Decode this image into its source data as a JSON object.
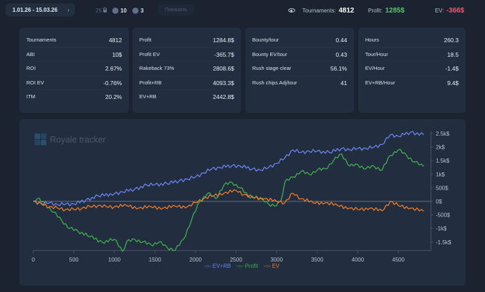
{
  "topbar": {
    "date_range": "1.01.26 - 15.03.26",
    "date_chevron": "›",
    "filter_locked_value": "25",
    "filter_a_value": "10",
    "filter_b_value": "3",
    "show_button": "Показать",
    "summary": {
      "tournaments_label": "Tournaments:",
      "tournaments_value": "4812",
      "profit_label": "Profit:",
      "profit_value": "1285$",
      "ev_label": "EV:",
      "ev_value": "-366$"
    }
  },
  "cards": [
    {
      "rows": [
        {
          "label": "Tournaments",
          "value": "4812"
        },
        {
          "label": "ABI",
          "value": "10$"
        },
        {
          "label": "ROI",
          "value": "2.67%"
        },
        {
          "label": "ROI EV",
          "value": "-0.76%"
        },
        {
          "label": "ITM",
          "value": "20.2%"
        }
      ]
    },
    {
      "rows": [
        {
          "label": "Profit",
          "value": "1284.8$"
        },
        {
          "label": "Profit EV",
          "value": "-365.7$"
        },
        {
          "label": "Rakeback 73%",
          "value": "2808.6$"
        },
        {
          "label": "Profit+RB",
          "value": "4093.3$"
        },
        {
          "label": "EV+RB",
          "value": "2442.8$"
        }
      ]
    },
    {
      "rows": [
        {
          "label": "Bounty/tour",
          "value": "0.44"
        },
        {
          "label": "Bounty EV/tour",
          "value": "0.43"
        },
        {
          "label": "Rush stage clear",
          "value": "56.1%"
        },
        {
          "label": "Rush chips Adj/tour",
          "value": "41"
        }
      ]
    },
    {
      "rows": [
        {
          "label": "Hours",
          "value": "260.3"
        },
        {
          "label": "Tour/Hour",
          "value": "18.5"
        },
        {
          "label": "EV/Hour",
          "value": "-1.4$"
        },
        {
          "label": "EV+RB/Hour",
          "value": "9.4$"
        }
      ]
    }
  ],
  "watermark": "Royale tracker",
  "chart_data": {
    "type": "line",
    "title": "",
    "xlabel": "",
    "ylabel": "",
    "xlim": [
      0,
      4812
    ],
    "ylim": [
      -1800,
      2700
    ],
    "x_ticks": [
      0,
      500,
      1000,
      1500,
      2000,
      2500,
      3000,
      3500,
      4000,
      4500
    ],
    "x_tick_labels": [
      "0",
      "500",
      "1000",
      "1500",
      "2000",
      "2500",
      "3000",
      "3500",
      "4000",
      "4500"
    ],
    "y_ticks": [
      2500,
      2000,
      1500,
      1000,
      500,
      0,
      -500,
      -1000,
      -1500
    ],
    "y_tick_labels": [
      "2.5k$",
      "2k$",
      "1.5k$",
      "1k$",
      "500$",
      "0$",
      "-500$",
      "-1k$",
      "-1.5k$"
    ],
    "legend_position": "bottom",
    "series": [
      {
        "name": "EV+RB",
        "color": "#6a85f0",
        "x": [
          0,
          100,
          200,
          300,
          400,
          500,
          650,
          800,
          1000,
          1100,
          1250,
          1400,
          1500,
          1650,
          1800,
          1900,
          2000,
          2100,
          2200,
          2300,
          2450,
          2550,
          2700,
          2800,
          2900,
          3000,
          3100,
          3200,
          3300,
          3400,
          3500,
          3650,
          3800,
          3900,
          4000,
          4100,
          4200,
          4300,
          4400,
          4500,
          4650,
          4812
        ],
        "values": [
          0,
          -80,
          -50,
          -120,
          -100,
          -100,
          50,
          200,
          280,
          350,
          450,
          600,
          620,
          650,
          760,
          820,
          900,
          1050,
          1200,
          1250,
          1320,
          1300,
          1200,
          1150,
          1250,
          1400,
          1600,
          1900,
          1800,
          1850,
          1850,
          1800,
          1950,
          1900,
          1950,
          1950,
          2000,
          2100,
          2450,
          2400,
          2550,
          2450
        ]
      },
      {
        "name": "Profit",
        "color": "#3fb14d",
        "x": [
          0,
          50,
          150,
          250,
          350,
          450,
          550,
          700,
          850,
          1000,
          1100,
          1150,
          1250,
          1350,
          1450,
          1550,
          1650,
          1750,
          1850,
          1950,
          2050,
          2150,
          2250,
          2350,
          2450,
          2550,
          2650,
          2800,
          2900,
          3000,
          3050,
          3100,
          3200,
          3300,
          3400,
          3500,
          3600,
          3700,
          3800,
          3900,
          4000,
          4100,
          4200,
          4300,
          4400,
          4500,
          4600,
          4700,
          4812
        ],
        "values": [
          0,
          100,
          -100,
          -400,
          -700,
          -1000,
          -1100,
          -1300,
          -1500,
          -1400,
          -1850,
          -1500,
          -1400,
          -1500,
          -1600,
          -1500,
          -1700,
          -1800,
          -1400,
          -700,
          0,
          300,
          100,
          600,
          700,
          500,
          200,
          100,
          -100,
          -150,
          0,
          700,
          900,
          1100,
          1000,
          1150,
          1200,
          1500,
          1750,
          1300,
          1350,
          1200,
          1300,
          1150,
          1700,
          1900,
          1700,
          1450,
          1285
        ]
      },
      {
        "name": "EV",
        "color": "#f07c26",
        "x": [
          0,
          100,
          200,
          300,
          400,
          500,
          600,
          700,
          800,
          900,
          1000,
          1150,
          1300,
          1450,
          1600,
          1750,
          1900,
          2000,
          2100,
          2200,
          2350,
          2500,
          2600,
          2700,
          2850,
          3000,
          3100,
          3200,
          3300,
          3450,
          3600,
          3750,
          3900,
          4000,
          4150,
          4300,
          4400,
          4500,
          4650,
          4812
        ],
        "values": [
          0,
          -100,
          -200,
          -250,
          -300,
          -300,
          -250,
          -200,
          -150,
          -200,
          -200,
          -150,
          -250,
          -200,
          -250,
          -180,
          -200,
          -50,
          100,
          200,
          300,
          400,
          250,
          150,
          100,
          0,
          -50,
          300,
          100,
          -50,
          -50,
          -150,
          -250,
          -300,
          -250,
          -350,
          0,
          -150,
          -250,
          -366
        ]
      }
    ]
  }
}
